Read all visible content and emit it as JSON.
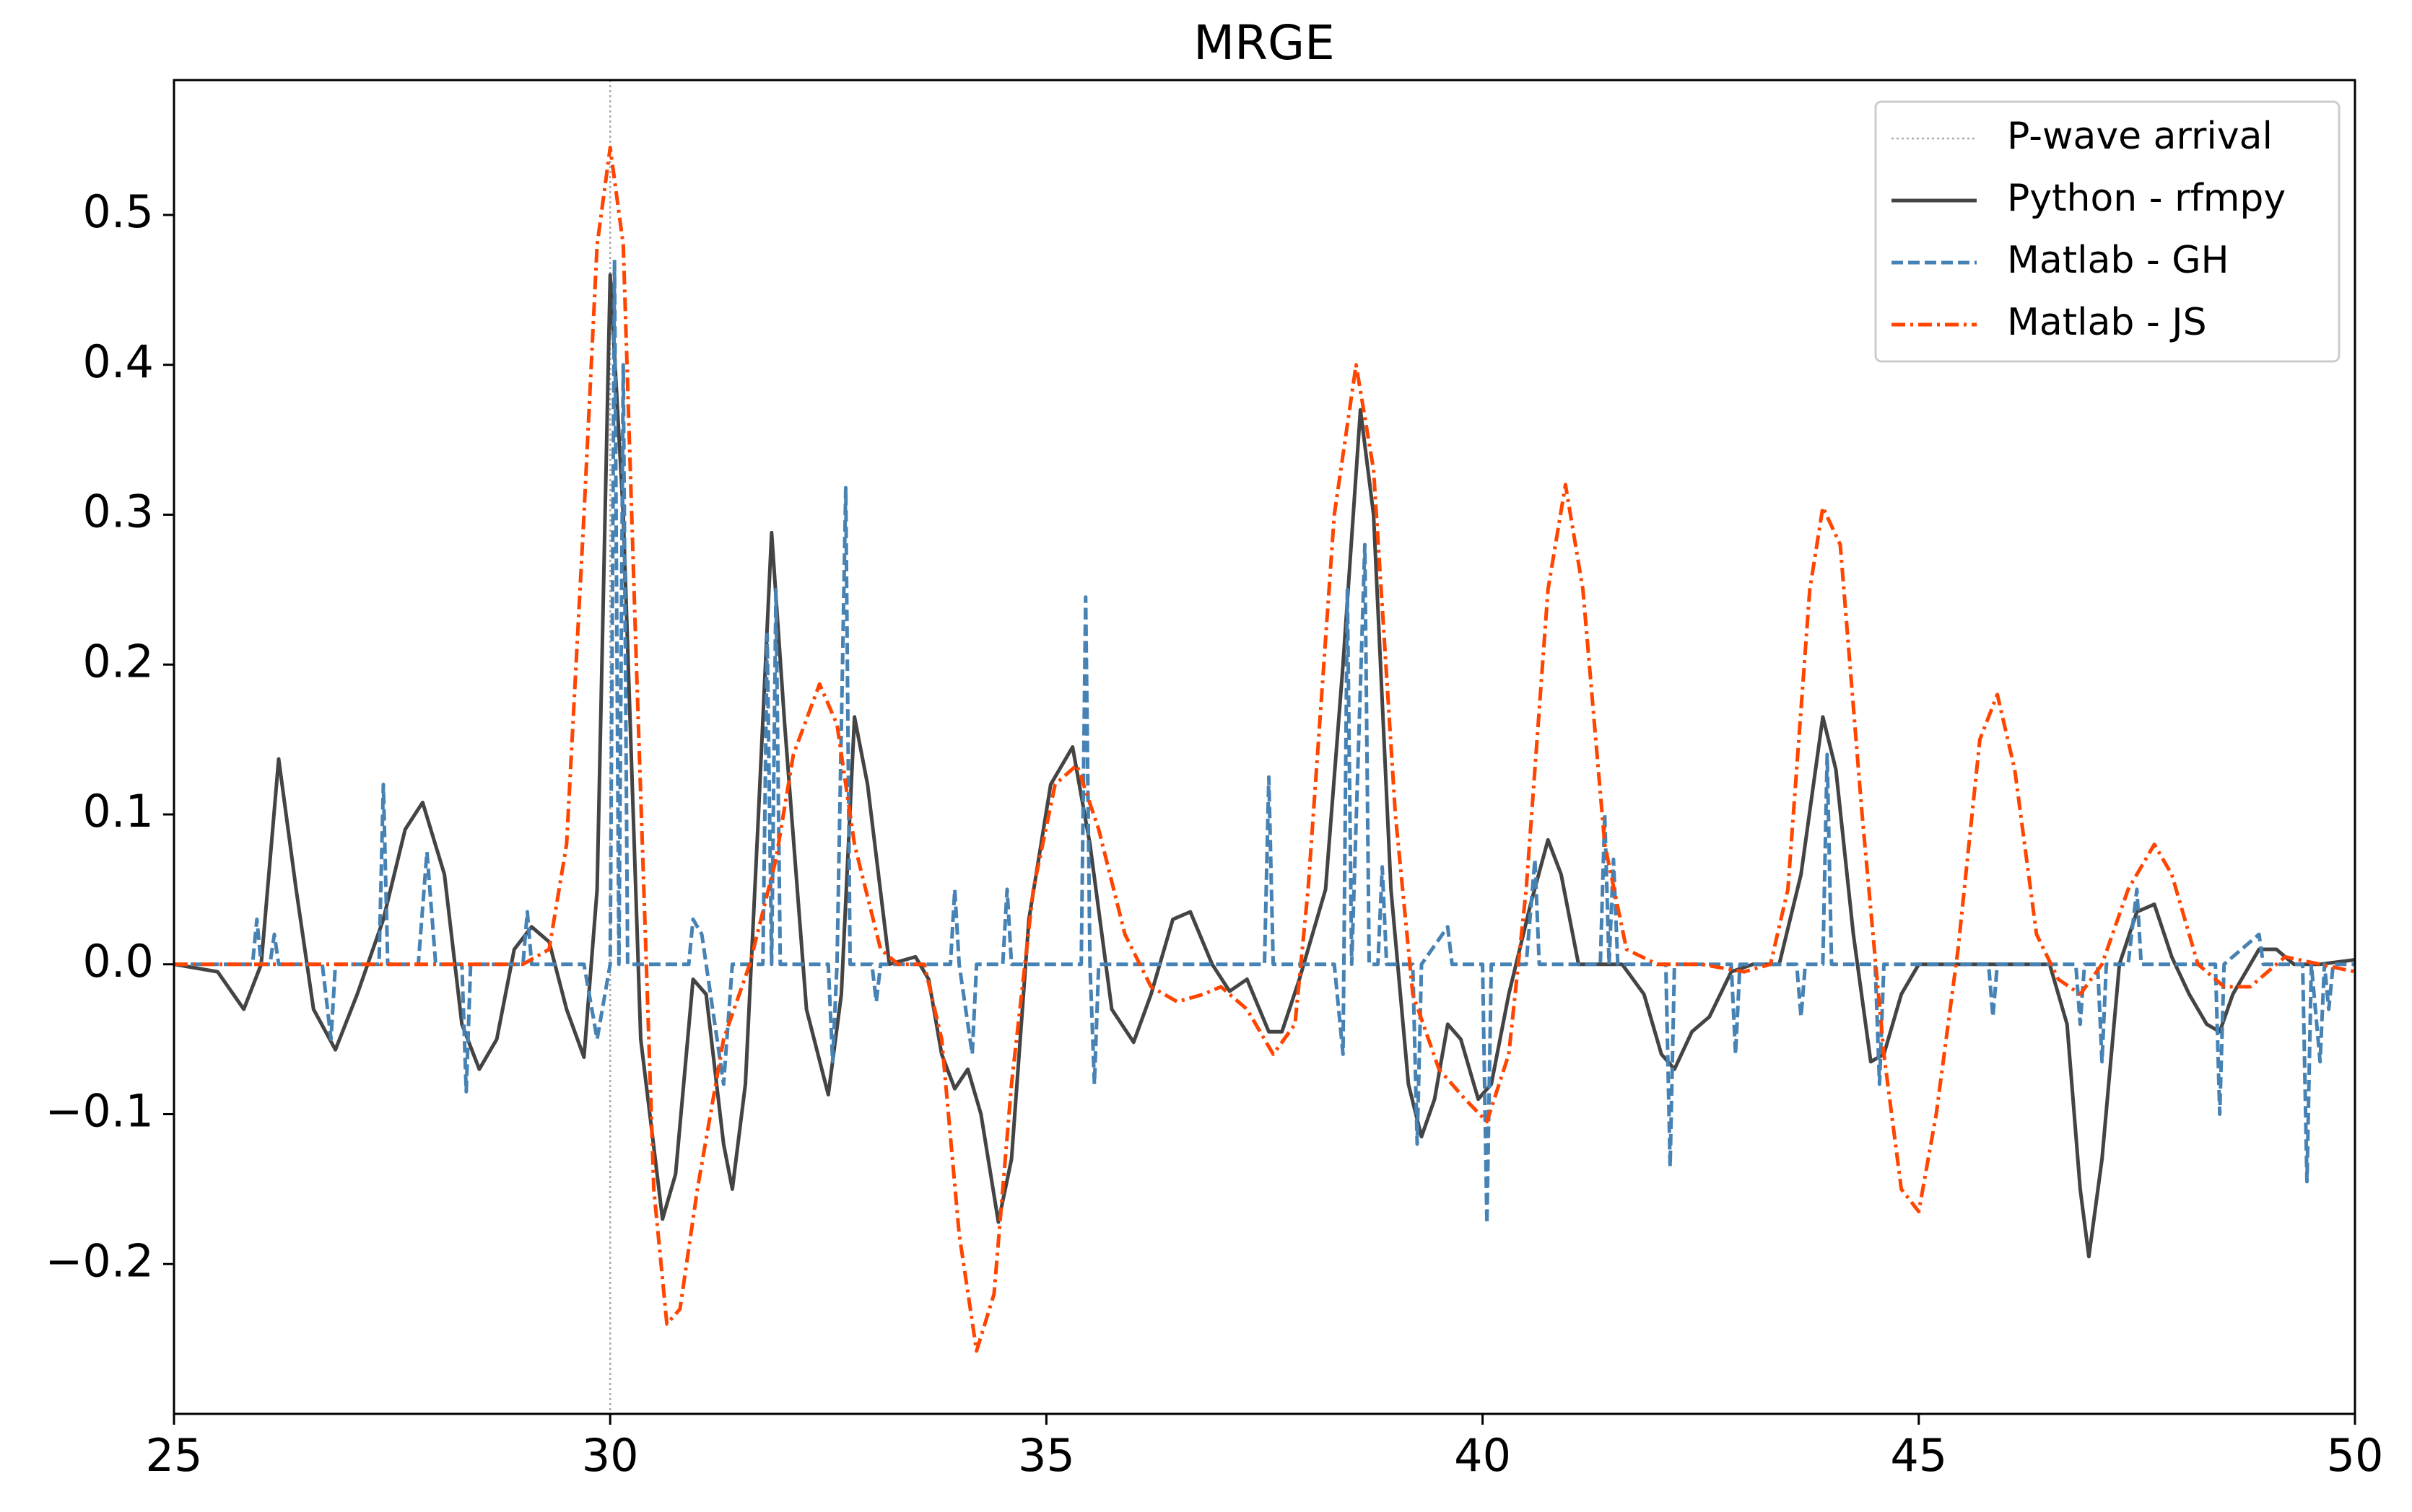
{
  "chart_data": {
    "type": "line",
    "title": "MRGE",
    "xlim": [
      25,
      50
    ],
    "xticks": [
      25,
      30,
      35,
      40,
      45,
      50
    ],
    "ylim": [
      -0.3,
      0.59
    ],
    "yticks": [
      {
        "value": -0.2,
        "label": "−0.2"
      },
      {
        "value": -0.1,
        "label": "−0.1"
      },
      {
        "value": 0,
        "label": "0.0"
      },
      0.1,
      0.2,
      0.3,
      0.4,
      0.5
    ],
    "legend": "upper right",
    "vline": {
      "name": "P-wave arrival",
      "x": 30,
      "color": "#aaaaaa"
    },
    "series": [
      {
        "name": "Python - rfmpy",
        "color": "#444444",
        "style": "solid",
        "x": [
          25,
          25.5,
          25.8,
          26.0,
          26.2,
          26.4,
          26.6,
          26.85,
          27.1,
          27.4,
          27.65,
          27.85,
          28.1,
          28.3,
          28.5,
          28.7,
          28.9,
          29.1,
          29.3,
          29.5,
          29.7,
          29.85,
          30.0,
          30.15,
          30.35,
          30.6,
          30.75,
          30.95,
          31.1,
          31.3,
          31.4,
          31.55,
          31.7,
          31.85,
          32.0,
          32.25,
          32.5,
          32.65,
          32.8,
          32.95,
          33.2,
          33.5,
          33.65,
          33.8,
          33.95,
          34.1,
          34.25,
          34.45,
          34.6,
          34.8,
          35.05,
          35.3,
          35.5,
          35.75,
          36.0,
          36.2,
          36.45,
          36.65,
          36.9,
          37.1,
          37.3,
          37.55,
          37.7,
          37.9,
          38.2,
          38.4,
          38.6,
          38.75,
          38.95,
          39.15,
          39.3,
          39.45,
          39.6,
          39.75,
          39.95,
          40.1,
          40.3,
          40.55,
          40.75,
          40.9,
          41.1,
          41.3,
          41.6,
          41.85,
          42.05,
          42.2,
          42.4,
          42.6,
          42.85,
          43.1,
          43.4,
          43.65,
          43.9,
          44.05,
          44.25,
          44.45,
          44.6,
          44.8,
          45.0,
          46.5,
          46.7,
          46.85,
          46.95,
          47.1,
          47.3,
          47.5,
          47.7,
          47.9,
          48.1,
          48.3,
          48.45,
          48.6,
          48.9,
          49.1,
          49.3,
          49.6,
          50
        ],
        "values": [
          0,
          -0.005,
          -0.03,
          0.0,
          0.137,
          0.05,
          -0.03,
          -0.057,
          -0.02,
          0.03,
          0.09,
          0.108,
          0.06,
          -0.04,
          -0.07,
          -0.05,
          0.01,
          0.025,
          0.015,
          -0.03,
          -0.062,
          0.05,
          0.46,
          0.3,
          -0.05,
          -0.17,
          -0.14,
          -0.01,
          -0.02,
          -0.12,
          -0.15,
          -0.08,
          0.1,
          0.288,
          0.16,
          -0.03,
          -0.087,
          -0.02,
          0.165,
          0.12,
          0.0,
          0.005,
          -0.01,
          -0.06,
          -0.083,
          -0.07,
          -0.1,
          -0.172,
          -0.13,
          0.03,
          0.12,
          0.145,
          0.08,
          -0.03,
          -0.052,
          -0.02,
          0.03,
          0.035,
          0.0,
          -0.018,
          -0.01,
          -0.045,
          -0.045,
          -0.01,
          0.05,
          0.2,
          0.37,
          0.3,
          0.05,
          -0.08,
          -0.115,
          -0.09,
          -0.04,
          -0.05,
          -0.09,
          -0.08,
          -0.02,
          0.04,
          0.083,
          0.06,
          0.0,
          0.0,
          0,
          -0.02,
          -0.06,
          -0.07,
          -0.045,
          -0.035,
          -0.005,
          0,
          0.0,
          0.06,
          0.165,
          0.13,
          0.02,
          -0.065,
          -0.06,
          -0.02,
          0.0,
          0.0,
          -0.04,
          -0.15,
          -0.195,
          -0.13,
          0.0,
          0.035,
          0.04,
          0.005,
          -0.02,
          -0.04,
          -0.045,
          -0.02,
          0.01,
          0.01,
          0.0,
          0.0,
          0.003
        ]
      },
      {
        "name": "Matlab - GH",
        "color": "#4682b4",
        "style": "dashed",
        "x": [
          25,
          25.9,
          25.95,
          26.0,
          26.1,
          26.15,
          26.2,
          26.7,
          26.8,
          26.85,
          27.35,
          27.4,
          27.45,
          27.8,
          27.9,
          28.0,
          28.3,
          28.35,
          28.4,
          29.0,
          29.05,
          29.1,
          29.7,
          29.85,
          30.0,
          30.05,
          30.1,
          30.15,
          30.2,
          30.9,
          30.95,
          31.05,
          31.1,
          31.3,
          31.4,
          31.75,
          31.8,
          31.85,
          31.9,
          31.95,
          32.5,
          32.55,
          32.6,
          32.7,
          32.75,
          33.0,
          33.05,
          33.1,
          33.9,
          33.95,
          34.0,
          34.15,
          34.2,
          34.5,
          34.55,
          34.6,
          35.4,
          35.45,
          35.5,
          35.55,
          35.6,
          37.5,
          37.55,
          37.6,
          38.3,
          38.4,
          38.45,
          38.5,
          38.65,
          38.7,
          38.8,
          38.85,
          38.9,
          39.2,
          39.25,
          39.3,
          39.6,
          39.65,
          40.0,
          40.05,
          40.1,
          40.5,
          40.6,
          40.65,
          41.35,
          41.4,
          41.45,
          41.5,
          41.55,
          42.1,
          42.15,
          42.2,
          42.85,
          42.9,
          42.95,
          43.6,
          43.65,
          43.7,
          43.9,
          43.95,
          44.0,
          44.5,
          44.55,
          44.6,
          45.8,
          45.85,
          45.9,
          46.8,
          46.85,
          46.9,
          47.05,
          47.1,
          47.15,
          47.4,
          47.5,
          47.55,
          48.4,
          48.45,
          48.5,
          48.9,
          48.95,
          49.4,
          49.45,
          49.5,
          49.6,
          49.65,
          49.7,
          49.75,
          50
        ],
        "values": [
          0,
          0,
          0.03,
          0,
          0,
          0.02,
          0,
          0,
          -0.05,
          0,
          0,
          0.12,
          0,
          0,
          0.075,
          0,
          0,
          -0.085,
          0,
          0,
          0.035,
          0,
          0,
          -0.05,
          0,
          0.47,
          0,
          0.4,
          0,
          0,
          0.03,
          0.02,
          0,
          -0.08,
          0,
          0,
          0.22,
          0,
          0.25,
          0,
          0,
          -0.065,
          0,
          0.318,
          0,
          0,
          -0.025,
          0,
          0,
          0.05,
          0,
          -0.06,
          0,
          0,
          0.05,
          0,
          0,
          0.245,
          0,
          -0.08,
          0,
          0,
          0.125,
          0,
          0,
          -0.06,
          0.25,
          0,
          0.28,
          0,
          0,
          0.065,
          0,
          0,
          -0.12,
          0,
          0.025,
          0,
          0,
          -0.173,
          0,
          0,
          0.07,
          0,
          0,
          0.1,
          0,
          0.07,
          0,
          0,
          -0.135,
          0,
          0,
          -0.06,
          0,
          0,
          -0.035,
          0,
          0,
          0.14,
          0,
          0,
          -0.08,
          0,
          0,
          -0.035,
          0,
          0,
          -0.04,
          0,
          0,
          -0.065,
          0,
          0,
          0.05,
          0,
          0,
          -0.1,
          0,
          0.02,
          0,
          0,
          -0.145,
          0,
          -0.065,
          0,
          -0.03,
          0,
          0
        ]
      },
      {
        "name": "Matlab - JS",
        "color": "#ff4500",
        "style": "dashdot",
        "x": [
          25,
          29.0,
          29.3,
          29.5,
          29.7,
          29.85,
          30.0,
          30.15,
          30.3,
          30.5,
          30.65,
          30.8,
          31.0,
          31.3,
          31.6,
          31.9,
          32.1,
          32.4,
          32.6,
          32.8,
          33.1,
          33.3,
          33.6,
          33.8,
          34.0,
          34.2,
          34.4,
          34.6,
          34.85,
          35.1,
          35.35,
          35.6,
          35.9,
          36.2,
          36.5,
          36.8,
          37.0,
          37.3,
          37.6,
          37.85,
          38.0,
          38.3,
          38.55,
          38.75,
          39.0,
          39.2,
          39.5,
          39.8,
          40.05,
          40.3,
          40.5,
          40.75,
          40.95,
          41.15,
          41.4,
          41.65,
          42.0,
          42.5,
          43.0,
          43.3,
          43.5,
          43.75,
          43.9,
          44.1,
          44.35,
          44.6,
          44.8,
          45.0,
          45.2,
          45.45,
          45.7,
          45.9,
          46.1,
          46.35,
          46.6,
          46.85,
          47.1,
          47.4,
          47.7,
          47.9,
          48.2,
          48.5,
          48.8,
          49.2,
          49.6,
          50
        ],
        "values": [
          0,
          0,
          0.01,
          0.08,
          0.3,
          0.48,
          0.545,
          0.48,
          0.2,
          -0.15,
          -0.24,
          -0.23,
          -0.15,
          -0.05,
          0.0,
          0.07,
          0.14,
          0.187,
          0.16,
          0.08,
          0.01,
          0.0,
          0.0,
          -0.05,
          -0.18,
          -0.258,
          -0.22,
          -0.08,
          0.05,
          0.12,
          0.133,
          0.09,
          0.02,
          -0.015,
          -0.025,
          -0.02,
          -0.015,
          -0.03,
          -0.06,
          -0.04,
          0.05,
          0.3,
          0.4,
          0.33,
          0.1,
          -0.02,
          -0.07,
          -0.09,
          -0.105,
          -0.06,
          0.05,
          0.25,
          0.32,
          0.25,
          0.08,
          0.01,
          0.0,
          0,
          -0.005,
          0.0,
          0.05,
          0.25,
          0.305,
          0.28,
          0.1,
          -0.06,
          -0.15,
          -0.165,
          -0.1,
          0.01,
          0.15,
          0.18,
          0.13,
          0.02,
          -0.01,
          -0.02,
          0.0,
          0.05,
          0.08,
          0.06,
          0.0,
          -0.015,
          -0.015,
          0.005,
          0.0,
          -0.005
        ]
      }
    ]
  }
}
